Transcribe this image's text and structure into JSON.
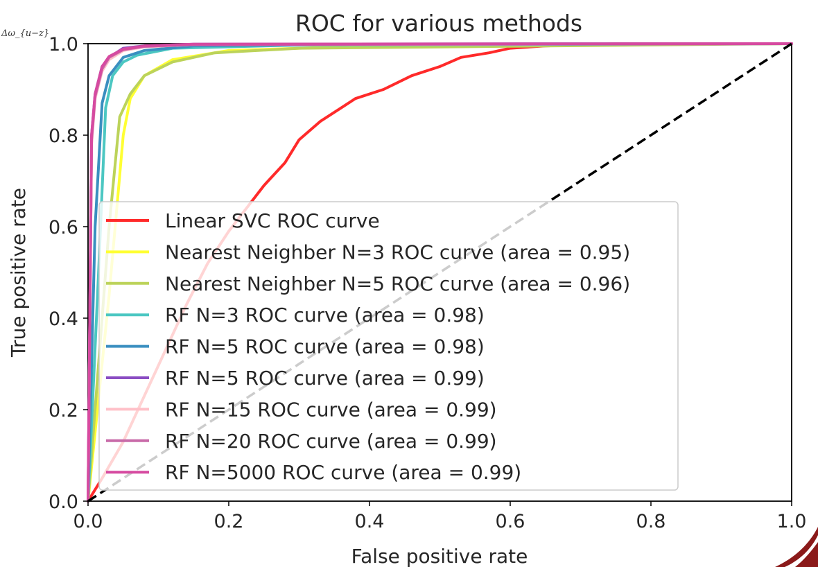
{
  "chart_data": {
    "type": "line",
    "title": "ROC for various methods",
    "xlabel": "False positive rate",
    "ylabel": "True positive rate",
    "xlim": [
      0,
      1
    ],
    "ylim": [
      0,
      1
    ],
    "xticks": [
      "0.0",
      "0.2",
      "0.4",
      "0.6",
      "0.8",
      "1.0"
    ],
    "yticks": [
      "0.0",
      "0.2",
      "0.4",
      "0.6",
      "0.8",
      "1.0"
    ],
    "grid": false,
    "legend_position": "lower-right",
    "corner_note": "Δω_{u−z}",
    "diagonal": {
      "x": [
        0,
        1
      ],
      "y": [
        0,
        1
      ],
      "color": "#000000",
      "style": "dashed"
    },
    "series": [
      {
        "name": "Linear SVC ROC curve",
        "color": "#ff2a2a",
        "x": [
          0,
          0.02,
          0.05,
          0.08,
          0.11,
          0.14,
          0.17,
          0.2,
          0.22,
          0.25,
          0.28,
          0.3,
          0.33,
          0.36,
          0.38,
          0.42,
          0.46,
          0.5,
          0.53,
          0.57,
          0.6,
          0.65,
          0.75,
          1.0
        ],
        "y": [
          0,
          0.05,
          0.13,
          0.23,
          0.33,
          0.43,
          0.52,
          0.59,
          0.63,
          0.69,
          0.74,
          0.79,
          0.83,
          0.86,
          0.88,
          0.9,
          0.93,
          0.95,
          0.97,
          0.98,
          0.99,
          0.995,
          1.0,
          1.0
        ]
      },
      {
        "name": "Nearest Neighber N=3 ROC curve (area = 0.95)",
        "color": "#ffff33",
        "x": [
          0,
          0.03,
          0.05,
          0.06,
          0.08,
          0.12,
          0.2,
          0.4,
          1.0
        ],
        "y": [
          0,
          0.45,
          0.8,
          0.88,
          0.93,
          0.965,
          0.985,
          0.995,
          1.0
        ]
      },
      {
        "name": "Nearest Neighber N=5 ROC curve (area = 0.96)",
        "color": "#bcd35a",
        "x": [
          0,
          0.03,
          0.045,
          0.06,
          0.08,
          0.12,
          0.18,
          0.3,
          1.0
        ],
        "y": [
          0,
          0.6,
          0.84,
          0.89,
          0.93,
          0.96,
          0.98,
          0.99,
          1.0
        ]
      },
      {
        "name": "RF N=3 ROC curve (area = 0.98)",
        "color": "#4cc7c2",
        "x": [
          0,
          0.015,
          0.025,
          0.035,
          0.05,
          0.07,
          0.12,
          0.3,
          1.0
        ],
        "y": [
          0,
          0.5,
          0.86,
          0.93,
          0.96,
          0.975,
          0.99,
          0.997,
          1.0
        ]
      },
      {
        "name": "RF N=5 ROC curve (area = 0.98)",
        "color": "#3a8fc0",
        "x": [
          0,
          0.01,
          0.02,
          0.03,
          0.05,
          0.08,
          0.15,
          0.4,
          1.0
        ],
        "y": [
          0,
          0.6,
          0.87,
          0.93,
          0.97,
          0.985,
          0.995,
          0.999,
          1.0
        ]
      },
      {
        "name": "RF N=5 ROC curve (area = 0.99)",
        "color": "#8a4cc2",
        "x": [
          0,
          0.005,
          0.01,
          0.02,
          0.03,
          0.05,
          0.08,
          0.15,
          1.0
        ],
        "y": [
          0,
          0.8,
          0.89,
          0.95,
          0.97,
          0.99,
          0.995,
          0.999,
          1.0
        ]
      },
      {
        "name": "RF N=15 ROC curve (area = 0.99)",
        "color": "#ffc0c8",
        "x": [
          0,
          0.005,
          0.01,
          0.02,
          0.03,
          0.05,
          0.08,
          0.15,
          1.0
        ],
        "y": [
          0,
          0.78,
          0.88,
          0.94,
          0.965,
          0.985,
          0.993,
          0.998,
          1.0
        ]
      },
      {
        "name": "RF N=20 ROC curve (area = 0.99)",
        "color": "#c86aa8",
        "x": [
          0,
          0.005,
          0.01,
          0.02,
          0.03,
          0.05,
          0.08,
          0.15,
          1.0
        ],
        "y": [
          0,
          0.79,
          0.885,
          0.945,
          0.97,
          0.987,
          0.994,
          0.998,
          1.0
        ]
      },
      {
        "name": "RF N=5000 ROC curve (area = 0.99)",
        "color": "#d64aa0",
        "x": [
          0,
          0.005,
          0.01,
          0.02,
          0.03,
          0.05,
          0.08,
          0.15,
          1.0
        ],
        "y": [
          0,
          0.8,
          0.89,
          0.95,
          0.972,
          0.988,
          0.995,
          0.999,
          1.0
        ]
      }
    ]
  },
  "decoration": {
    "corner_swoosh_color": "#8b1a1a"
  }
}
